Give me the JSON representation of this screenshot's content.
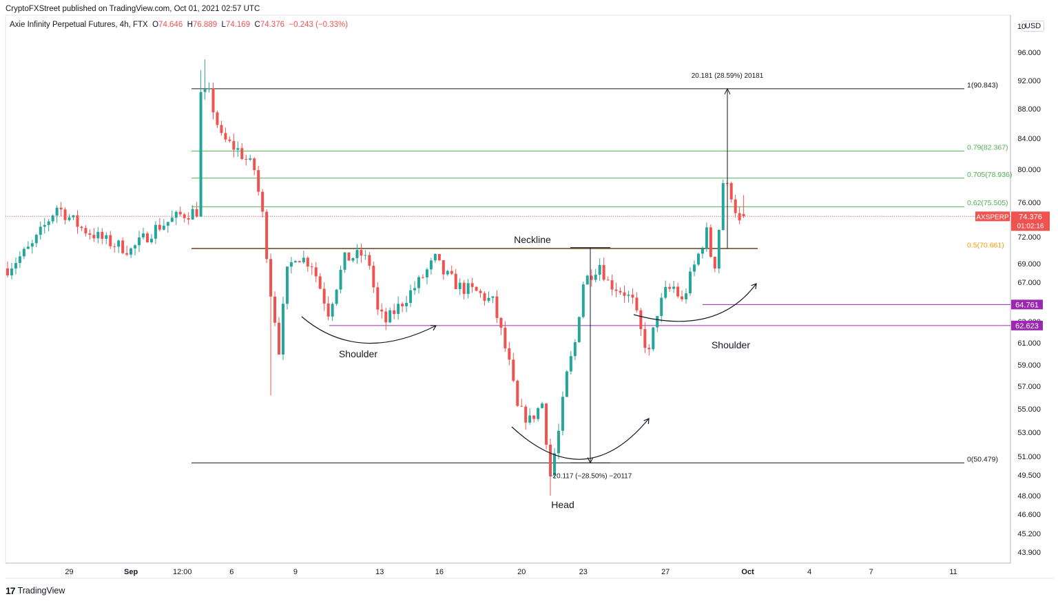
{
  "header": {
    "published": "CryptoFXStreet published on TradingView.com, Oct 01, 2021 02:57 UTC",
    "symbol": "Axie Infinity Perpetual Futures, 4h, FTX",
    "o_label": "O",
    "o_value": "74.646",
    "h_label": "H",
    "h_value": "76.889",
    "l_label": "L",
    "l_value": "74.169",
    "c_label": "C",
    "c_value": "74.376",
    "change": "−0.243 (−0.33%)"
  },
  "currency": "USD",
  "brand": {
    "logo": "17",
    "name": "TradingView"
  },
  "colors": {
    "up": "#26a69a",
    "down": "#ef5350",
    "fib_green": "#4caf50",
    "fib_orange": "#ff9800",
    "support_purple": "#9c27b0"
  },
  "chart_data": {
    "type": "candlestick",
    "y_axis_ticks": [
      "96.000",
      "92.000",
      "88.000",
      "84.000",
      "80.000",
      "76.000",
      "72.000",
      "69.000",
      "67.000",
      "65.000",
      "63.000",
      "61.000",
      "59.000",
      "57.000",
      "55.000",
      "53.000",
      "51.000",
      "49.500",
      "48.000",
      "46.600",
      "45.200",
      "43.900"
    ],
    "y_axis_top_label": "10",
    "x_axis_ticks": [
      "29",
      "Sep",
      "12:00",
      "6",
      "9",
      "13",
      "16",
      "20",
      "23",
      "27",
      "Oct",
      "4",
      "7",
      "11"
    ],
    "price_tag": {
      "symbol": "AXSPERP",
      "price": "74.376",
      "countdown": "01:02:16"
    },
    "price_level_tags": [
      {
        "label": "64.761",
        "value": 64.761
      },
      {
        "label": "62.623",
        "value": 62.623
      }
    ],
    "fib_levels": [
      {
        "label": "1(90.843)",
        "value": 90.843
      },
      {
        "label": "0.79(82.367)",
        "value": 82.367
      },
      {
        "label": "0.705(78.936)",
        "value": 78.936
      },
      {
        "label": "0.62(75.505)",
        "value": 75.505
      },
      {
        "label": "0.5(70.661)",
        "value": 70.661
      },
      {
        "label": "0(50.479)",
        "value": 50.479
      }
    ],
    "measure_up_label": "20.181 (28.59%) 20181",
    "measure_down_label": "−20.117 (−28.50%) −20117",
    "annotations": {
      "neckline": "Neckline",
      "left_shoulder": "Shoulder",
      "head": "Head",
      "right_shoulder": "Shoulder"
    },
    "last_price": 74.376,
    "neckline_value": 70.661,
    "head_low": 48.0,
    "high_peak": 95.0
  }
}
